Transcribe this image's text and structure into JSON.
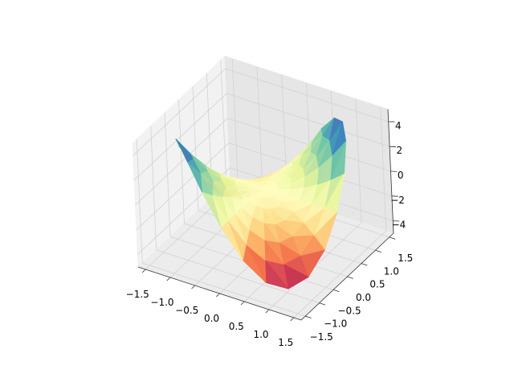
{
  "chart_data": {
    "type": "surface",
    "title": "",
    "xlabel": "",
    "ylabel": "",
    "zlabel": "",
    "colormap": "Spectral",
    "colormap_stops": [
      "#9e0142",
      "#d53e4f",
      "#f46d43",
      "#fdae61",
      "#fee08b",
      "#ffffbf",
      "#e6f598",
      "#abdda4",
      "#66c2a5",
      "#3288bd",
      "#5e4fa2"
    ],
    "xlim": [
      -1.65,
      1.65
    ],
    "ylim": [
      -1.65,
      1.65
    ],
    "zlim": [
      -5,
      5
    ],
    "grid": true,
    "view": {
      "elev": 30,
      "azim": -60
    },
    "xticks": [
      "-1.5",
      "-1.0",
      "-0.5",
      "0.0",
      "0.5",
      "1.0",
      "1.5"
    ],
    "yticks": [
      "-1.5",
      "-1.0",
      "-0.5",
      "0.0",
      "0.5",
      "1.0",
      "1.5"
    ],
    "zticks": [
      "-4",
      "-2",
      "0",
      "2",
      "4"
    ],
    "xtick_values": [
      -1.5,
      -1.0,
      -0.5,
      0.0,
      0.5,
      1.0,
      1.5
    ],
    "ytick_values": [
      -1.5,
      -1.0,
      -0.5,
      0.0,
      0.5,
      1.0,
      1.5
    ],
    "ztick_values": [
      -4,
      -2,
      0,
      2,
      4
    ],
    "surface": {
      "radii": [
        0,
        0.25,
        0.5,
        0.75,
        1.0,
        1.25,
        1.5
      ],
      "angles_deg": [
        0,
        15,
        30,
        45,
        60,
        75,
        90,
        105,
        120,
        135,
        150,
        165,
        180,
        195,
        210,
        225,
        240,
        255,
        270,
        285,
        300,
        315,
        330,
        345
      ],
      "z": [
        [
          0,
          0,
          0,
          0,
          0,
          0,
          0,
          0,
          0,
          0,
          0,
          0,
          0,
          0,
          0,
          0,
          0,
          0,
          0,
          0,
          0,
          0,
          0,
          0
        ],
        [
          0,
          0.06,
          0.11,
          0.13,
          0.11,
          0.06,
          0,
          -0.06,
          -0.11,
          -0.13,
          -0.11,
          -0.06,
          0,
          0.06,
          0.11,
          0.13,
          0.11,
          0.06,
          0,
          -0.06,
          -0.11,
          -0.13,
          -0.11,
          -0.06
        ],
        [
          0,
          0.25,
          0.43,
          0.5,
          0.43,
          0.25,
          0,
          -0.25,
          -0.43,
          -0.5,
          -0.43,
          -0.25,
          0,
          0.25,
          0.43,
          0.5,
          0.43,
          0.25,
          0,
          -0.25,
          -0.43,
          -0.5,
          -0.43,
          -0.25
        ],
        [
          0,
          0.56,
          0.97,
          1.13,
          0.97,
          0.56,
          0,
          -0.56,
          -0.97,
          -1.13,
          -0.97,
          -0.56,
          0,
          0.56,
          0.97,
          1.13,
          0.97,
          0.56,
          0,
          -0.56,
          -0.97,
          -1.13,
          -0.97,
          -0.56
        ],
        [
          0,
          1,
          1.73,
          2,
          1.73,
          1,
          0,
          -1,
          -1.73,
          -2,
          -1.73,
          -1,
          0,
          1,
          1.73,
          2,
          1.73,
          1,
          0,
          -1,
          -1.73,
          -2,
          -1.73,
          -1
        ],
        [
          0,
          1.56,
          2.71,
          3.13,
          2.71,
          1.56,
          0,
          -1.56,
          -2.71,
          -3.13,
          -2.71,
          -1.56,
          0,
          1.56,
          2.71,
          3.13,
          2.71,
          1.56,
          0,
          -1.56,
          -2.71,
          -3.13,
          -2.71,
          -1.56
        ],
        [
          0,
          2.25,
          3.9,
          4.5,
          3.9,
          2.25,
          0,
          -2.25,
          -3.9,
          -4.5,
          -3.9,
          -2.25,
          0,
          2.25,
          3.9,
          4.5,
          3.9,
          2.25,
          0,
          -2.25,
          -3.9,
          -4.5,
          -3.9,
          -2.25
        ]
      ]
    }
  }
}
